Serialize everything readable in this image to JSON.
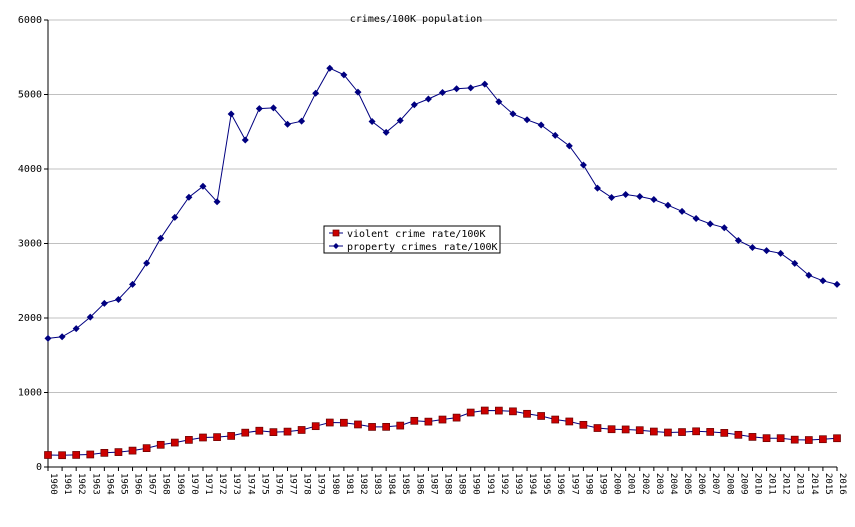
{
  "chart_data": {
    "type": "line",
    "title": "crimes/100K population",
    "xlabel": "",
    "ylabel": "",
    "ylim": [
      0,
      6000
    ],
    "yticks": [
      0,
      1000,
      2000,
      3000,
      4000,
      5000,
      6000
    ],
    "grid": "horizontal",
    "legend_position": "center",
    "x": [
      "1960",
      "1961",
      "1962",
      "1963",
      "1964",
      "1965",
      "1966",
      "1967",
      "1968",
      "1969",
      "1970",
      "1971",
      "1972",
      "1973",
      "1974",
      "1975",
      "1976",
      "1977",
      "1978",
      "1979",
      "1980",
      "1981",
      "1982",
      "1983",
      "1984",
      "1985",
      "1986",
      "1987",
      "1988",
      "1989",
      "1990",
      "1991",
      "1992",
      "1993",
      "1994",
      "1995",
      "1996",
      "1997",
      "1998",
      "1999",
      "2000",
      "2001",
      "2002",
      "2003",
      "2004",
      "2005",
      "2006",
      "2007",
      "2008",
      "2009",
      "2010",
      "2011",
      "2012",
      "2013",
      "2014",
      "2015",
      "2016"
    ],
    "series": [
      {
        "name": "violent crime rate/100K",
        "color": "#cc0000",
        "marker": "square",
        "values": [
          161,
          158,
          162,
          168,
          190,
          200,
          220,
          253,
          298,
          328,
          364,
          396,
          401,
          417,
          461,
          487,
          468,
          475,
          497,
          548,
          597,
          594,
          571,
          538,
          539,
          556,
          620,
          609,
          637,
          663,
          731,
          758,
          757,
          747,
          714,
          685,
          637,
          611,
          566,
          523,
          507,
          504,
          494,
          476,
          463,
          469,
          479,
          471,
          458,
          432,
          404,
          387,
          387,
          367,
          362,
          373,
          386
        ]
      },
      {
        "name": "property crimes rate/100K",
        "color": "#000080",
        "marker": "diamond",
        "values": [
          1726,
          1748,
          1857,
          2012,
          2197,
          2249,
          2451,
          2736,
          3071,
          3351,
          3621,
          3768,
          3560,
          4738,
          4390,
          4811,
          4820,
          4601,
          4642,
          5017,
          5353,
          5264,
          5032,
          4637,
          4492,
          4651,
          4863,
          4940,
          5027,
          5077,
          5089,
          5140,
          4903,
          4740,
          4661,
          4591,
          4451,
          4311,
          4053,
          3744,
          3618,
          3658,
          3631,
          3591,
          3514,
          3432,
          3335,
          3264,
          3212,
          3041,
          2946,
          2905,
          2868,
          2734,
          2574,
          2500,
          2451
        ]
      }
    ]
  }
}
